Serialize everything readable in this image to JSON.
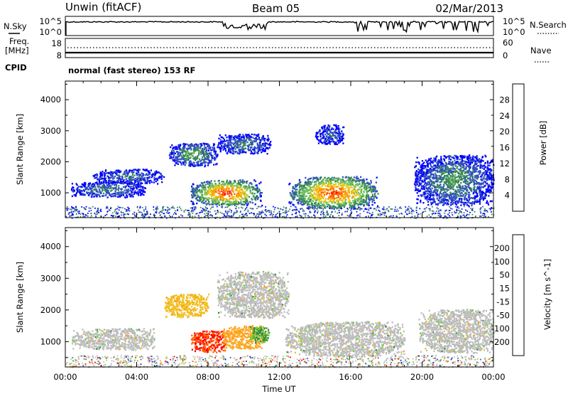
{
  "header": {
    "station": "Unwin (fitACF)",
    "beam": "Beam 05",
    "date": "02/Mar/2013"
  },
  "status_panels": {
    "nsky_label": "N.Sky",
    "nsearch_label": "N.Search",
    "freq_label": "Freq.",
    "freq_unit": "[MHz]",
    "nave_label": "Nave",
    "cpid_label": "CPID",
    "cpid_text": "normal (fast stereo) 153 RF",
    "noise_left_ticks": [
      "10^5",
      "10^0"
    ],
    "noise_right_ticks": [
      "10^5",
      "10^0"
    ],
    "freq_left_ticks": [
      "18",
      "8"
    ],
    "freq_right_ticks": [
      "60",
      "0"
    ]
  },
  "colors": {
    "power_scale": [
      "#0000ff",
      "#2f4fbf",
      "#3a8a55",
      "#6fbf5f",
      "#e8c81a",
      "#ff9a00",
      "#ff5a00",
      "#ff0000"
    ],
    "velocity_scale": [
      "#2020c0",
      "#2a6ab0",
      "#2f8a40",
      "#6fcf3a",
      "#bfbfbf",
      "#f0c020",
      "#ffa020",
      "#ff6000",
      "#ff0000"
    ],
    "ground_scatter": "#bcbcbc"
  },
  "chart_data": [
    {
      "type": "heatmap",
      "title": "",
      "ylabel": "Slant Range [km]",
      "xlabel": "",
      "ylim": [
        200,
        4600
      ],
      "x_ticks": [
        "00:00",
        "04:00",
        "08:00",
        "12:00",
        "16:00",
        "20:00",
        "00:00"
      ],
      "y_ticks": [
        1000,
        2000,
        3000,
        4000
      ],
      "colorbar": {
        "label": "Power [dB]",
        "ticks": [
          4,
          8,
          12,
          16,
          20,
          24,
          28
        ]
      },
      "features": [
        {
          "name": "",
          "start_ut": 0.3,
          "end_ut": 4.5,
          "range_from": 900,
          "range_to": 1350,
          "peak_db": 10
        },
        {
          "name": "",
          "start_ut": 1.5,
          "end_ut": 5.5,
          "range_from": 1350,
          "range_to": 1750,
          "peak_db": 9
        },
        {
          "name": "",
          "start_ut": 5.8,
          "end_ut": 8.5,
          "range_from": 1900,
          "range_to": 2600,
          "peak_db": 14
        },
        {
          "name": "",
          "start_ut": 7.0,
          "end_ut": 11.0,
          "range_from": 650,
          "range_to": 1400,
          "peak_db": 30
        },
        {
          "name": "",
          "start_ut": 8.5,
          "end_ut": 11.5,
          "range_from": 2300,
          "range_to": 2900,
          "peak_db": 10
        },
        {
          "name": "",
          "start_ut": 12.5,
          "end_ut": 17.5,
          "range_from": 550,
          "range_to": 1500,
          "peak_db": 29
        },
        {
          "name": "",
          "start_ut": 14.0,
          "end_ut": 15.6,
          "range_from": 2600,
          "range_to": 3200,
          "peak_db": 8
        },
        {
          "name": "",
          "start_ut": 19.5,
          "end_ut": 24.0,
          "range_from": 650,
          "range_to": 2200,
          "peak_db": 12
        }
      ]
    },
    {
      "type": "heatmap",
      "title": "",
      "ylabel": "Slant Range [km]",
      "xlabel": "Time UT",
      "ylim": [
        200,
        4600
      ],
      "x_ticks": [
        "00:00",
        "04:00",
        "08:00",
        "12:00",
        "16:00",
        "20:00",
        "00:00"
      ],
      "y_ticks": [
        1000,
        2000,
        3000,
        4000
      ],
      "colorbar": {
        "label": "Velocity [m s^-1]",
        "ticks": [
          200,
          100,
          50,
          15,
          -15,
          -50,
          -100,
          -200
        ]
      },
      "features": [
        {
          "name": "",
          "start_ut": 0.3,
          "end_ut": 5.0,
          "range_from": 800,
          "range_to": 1400,
          "velocity": 0
        },
        {
          "name": "",
          "start_ut": 5.5,
          "end_ut": 8.0,
          "range_from": 1800,
          "range_to": 2500,
          "velocity": -40
        },
        {
          "name": "",
          "start_ut": 7.0,
          "end_ut": 9.0,
          "range_from": 700,
          "range_to": 1350,
          "velocity": -200
        },
        {
          "name": "",
          "start_ut": 8.8,
          "end_ut": 11.2,
          "range_from": 800,
          "range_to": 1500,
          "velocity": -60
        },
        {
          "name": "",
          "start_ut": 10.3,
          "end_ut": 11.4,
          "range_from": 1000,
          "range_to": 1500,
          "velocity": 50
        },
        {
          "name": "",
          "start_ut": 8.5,
          "end_ut": 12.5,
          "range_from": 1800,
          "range_to": 3200,
          "velocity": 0
        },
        {
          "name": "",
          "start_ut": 12.3,
          "end_ut": 19.0,
          "range_from": 600,
          "range_to": 1600,
          "velocity": 0
        },
        {
          "name": "",
          "start_ut": 19.8,
          "end_ut": 24.0,
          "range_from": 700,
          "range_to": 2000,
          "velocity": 0
        }
      ]
    }
  ]
}
